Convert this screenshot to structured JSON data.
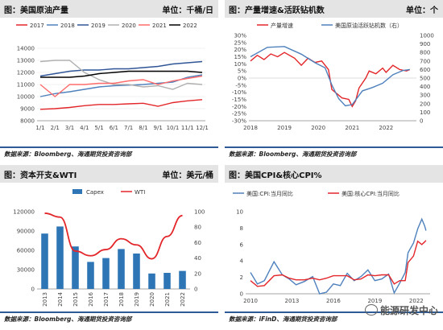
{
  "panels": [
    {
      "title": "图：美国原油产量",
      "unit": "单位：千桶/日",
      "source": "数据来源：Bloomberg、海通期货投资咨询部"
    },
    {
      "title": "图：产量增速&活跃钻机数",
      "unit": "单位：个",
      "source": "数据来源：Bloomberg、海通期货投资咨询部"
    },
    {
      "title": "图：资本开支&WTI",
      "unit": "单位：美元/桶",
      "source": "数据来源：Bloomberg、海通期货投资咨询部"
    },
    {
      "title": "图：美国CPI&核心CPI%",
      "unit": "",
      "source": "数据来源：iFinD、海通期货投资咨询部"
    }
  ],
  "watermark": "能源研发中心",
  "chart_data": [
    {
      "type": "line",
      "x": [
        "1/1",
        "1/2",
        "1/3",
        "1/4",
        "1/5",
        "1/6",
        "1/7",
        "1/8",
        "1/9",
        "1/10",
        "1/11",
        "1/12"
      ],
      "xticks": [
        "1/1",
        "2/1",
        "3/1",
        "4/1",
        "5/1",
        "6/1",
        "7/1",
        "8/1",
        "9/1",
        "10/1",
        "11/1",
        "12/1"
      ],
      "ylim": [
        8000,
        14000
      ],
      "yticks": [
        "8000",
        "9000",
        "10000",
        "11000",
        "12000",
        "13000",
        "14000"
      ],
      "grid": true,
      "legend": "top",
      "series": [
        {
          "name": "2017",
          "color": "#e3262a",
          "values": [
            8950,
            9000,
            9100,
            9250,
            9350,
            9350,
            9400,
            9450,
            9200,
            9500,
            9650,
            9750
          ]
        },
        {
          "name": "2018",
          "color": "#4f81bd",
          "values": [
            10000,
            10250,
            10400,
            10600,
            10800,
            10900,
            10950,
            11000,
            11100,
            11200,
            11600,
            11800
          ]
        },
        {
          "name": "2019",
          "color": "#2f5597",
          "values": [
            11700,
            11900,
            12100,
            12200,
            12200,
            12300,
            12300,
            12400,
            12500,
            12700,
            12800,
            12900
          ]
        },
        {
          "name": "2020",
          "color": "#b0b0b0",
          "values": [
            12900,
            13000,
            13000,
            12000,
            11400,
            11000,
            11000,
            10800,
            10900,
            10600,
            11100,
            11000
          ]
        },
        {
          "name": "2021",
          "color": "#ff6b6b",
          "values": [
            11000,
            10000,
            11000,
            11000,
            11100,
            11100,
            11300,
            11400,
            11000,
            11300,
            11500,
            11700
          ]
        },
        {
          "name": "2022",
          "color": "#000000",
          "values": [
            11600,
            11600,
            11600,
            11700,
            11900,
            12000,
            12100,
            12100,
            12100,
            12100,
            12100,
            12000
          ]
        }
      ]
    },
    {
      "type": "line",
      "x": [
        "2018",
        "2019",
        "2020",
        "2021",
        "2022"
      ],
      "ylim_left": [
        -30,
        30
      ],
      "yticks_left": [
        "-30%",
        "-25%",
        "-20%",
        "-15%",
        "-10%",
        "-5%",
        "0%",
        "5%",
        "10%",
        "15%",
        "20%",
        "25%",
        "30%"
      ],
      "ylim_right": [
        0,
        1000
      ],
      "yticks_right": [
        "0",
        "100",
        "200",
        "300",
        "400",
        "500",
        "600",
        "700",
        "800",
        "900",
        "1000"
      ],
      "legend": "top",
      "series": [
        {
          "name": "产量增速",
          "color": "#e3262a",
          "axis": "left",
          "points": [
            [
              2018.0,
              12
            ],
            [
              2018.2,
              16
            ],
            [
              2018.4,
              13
            ],
            [
              2018.6,
              17
            ],
            [
              2018.8,
              15
            ],
            [
              2019.0,
              18
            ],
            [
              2019.3,
              14
            ],
            [
              2019.5,
              9
            ],
            [
              2019.7,
              14
            ],
            [
              2019.9,
              11
            ],
            [
              2020.1,
              12
            ],
            [
              2020.3,
              6
            ],
            [
              2020.4,
              -8
            ],
            [
              2020.5,
              -10
            ],
            [
              2020.7,
              -14
            ],
            [
              2020.9,
              -15
            ],
            [
              2021.0,
              -20
            ],
            [
              2021.1,
              -16
            ],
            [
              2021.2,
              -7
            ],
            [
              2021.4,
              0
            ],
            [
              2021.5,
              5
            ],
            [
              2021.7,
              3
            ],
            [
              2021.9,
              7
            ],
            [
              2022.0,
              4
            ],
            [
              2022.2,
              9
            ],
            [
              2022.4,
              6
            ],
            [
              2022.6,
              5
            ],
            [
              2022.7,
              6
            ]
          ]
        },
        {
          "name": "美国原油活跃钻机数（右）",
          "color": "#4f81bd",
          "axis": "right",
          "points": [
            [
              2018.0,
              750
            ],
            [
              2018.5,
              860
            ],
            [
              2019.0,
              870
            ],
            [
              2019.5,
              780
            ],
            [
              2019.9,
              680
            ],
            [
              2020.2,
              620
            ],
            [
              2020.4,
              420
            ],
            [
              2020.6,
              260
            ],
            [
              2020.8,
              175
            ],
            [
              2021.0,
              190
            ],
            [
              2021.3,
              350
            ],
            [
              2021.6,
              390
            ],
            [
              2021.9,
              440
            ],
            [
              2022.2,
              540
            ],
            [
              2022.5,
              590
            ],
            [
              2022.7,
              600
            ]
          ]
        }
      ]
    },
    {
      "type": "bar",
      "categories": [
        "2013",
        "2014",
        "2015",
        "2016",
        "2017",
        "2018",
        "2019",
        "2020",
        "2021",
        "2022"
      ],
      "ylim_left": [
        0,
        120000
      ],
      "yticks_left": [
        "0",
        "30000",
        "60000",
        "90000",
        "120000"
      ],
      "ylim_right": [
        0,
        100
      ],
      "yticks_right": [
        "0",
        "20",
        "40",
        "60",
        "80",
        "100"
      ],
      "legend": "top",
      "series": [
        {
          "name": "Capex",
          "type": "bar",
          "color": "#2e75b6",
          "axis": "left",
          "values": [
            86000,
            97000,
            66000,
            42000,
            48000,
            62000,
            55000,
            24000,
            25000,
            28000
          ]
        },
        {
          "name": "WTI",
          "type": "line",
          "color": "#e3262a",
          "axis": "right",
          "values": [
            98,
            93,
            49,
            43,
            51,
            65,
            57,
            39,
            68,
            95
          ]
        }
      ]
    },
    {
      "type": "line",
      "x": [
        "2010",
        "2013",
        "2016",
        "2019",
        "2022"
      ],
      "ylim": [
        0,
        10
      ],
      "yticks": [
        "0",
        "2",
        "4",
        "6",
        "8",
        "10"
      ],
      "legend": "top",
      "series": [
        {
          "name": "美国:CPI:当月同比",
          "color": "#4f81bd",
          "points": [
            [
              2010.0,
              2.6
            ],
            [
              2010.5,
              1.2
            ],
            [
              2011.0,
              1.6
            ],
            [
              2011.7,
              3.9
            ],
            [
              2012.3,
              2.3
            ],
            [
              2012.8,
              1.8
            ],
            [
              2013.3,
              1.1
            ],
            [
              2013.9,
              1.5
            ],
            [
              2014.5,
              2.1
            ],
            [
              2015.0,
              0.0
            ],
            [
              2015.5,
              0.2
            ],
            [
              2016.0,
              1.2
            ],
            [
              2016.5,
              1.0
            ],
            [
              2017.0,
              2.5
            ],
            [
              2017.5,
              1.6
            ],
            [
              2018.0,
              2.1
            ],
            [
              2018.5,
              2.9
            ],
            [
              2019.0,
              1.6
            ],
            [
              2019.5,
              1.8
            ],
            [
              2020.0,
              2.4
            ],
            [
              2020.4,
              0.1
            ],
            [
              2020.8,
              1.3
            ],
            [
              2021.2,
              2.6
            ],
            [
              2021.4,
              5.0
            ],
            [
              2021.8,
              6.2
            ],
            [
              2022.1,
              7.9
            ],
            [
              2022.4,
              9.1
            ],
            [
              2022.6,
              8.3
            ],
            [
              2022.7,
              7.7
            ]
          ]
        },
        {
          "name": "美国:核心CPI:当月同比",
          "color": "#e3262a",
          "points": [
            [
              2010.0,
              1.6
            ],
            [
              2010.5,
              0.9
            ],
            [
              2011.0,
              1.0
            ],
            [
              2011.7,
              2.2
            ],
            [
              2012.3,
              2.3
            ],
            [
              2012.8,
              1.9
            ],
            [
              2013.3,
              1.7
            ],
            [
              2013.9,
              1.7
            ],
            [
              2014.5,
              1.9
            ],
            [
              2015.0,
              1.7
            ],
            [
              2015.5,
              1.9
            ],
            [
              2016.0,
              2.2
            ],
            [
              2016.5,
              2.2
            ],
            [
              2017.0,
              2.2
            ],
            [
              2017.5,
              1.7
            ],
            [
              2018.0,
              1.8
            ],
            [
              2018.5,
              2.3
            ],
            [
              2019.0,
              2.2
            ],
            [
              2019.5,
              2.3
            ],
            [
              2020.0,
              2.3
            ],
            [
              2020.4,
              1.2
            ],
            [
              2020.8,
              1.6
            ],
            [
              2021.2,
              1.6
            ],
            [
              2021.4,
              3.8
            ],
            [
              2021.8,
              4.6
            ],
            [
              2022.1,
              6.4
            ],
            [
              2022.4,
              6.0
            ],
            [
              2022.6,
              6.3
            ],
            [
              2022.7,
              6.5
            ]
          ]
        }
      ]
    }
  ]
}
